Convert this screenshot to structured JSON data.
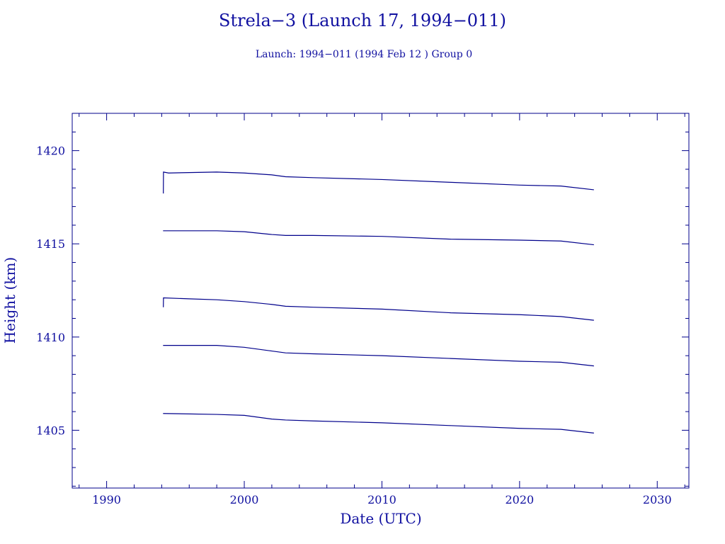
{
  "chart_data": {
    "type": "line",
    "title": "Strela−3 (Launch 17, 1994−011)",
    "subtitle": "Launch: 1994−011  (1994 Feb 12 )  Group 0",
    "xlabel": "Date (UTC)",
    "ylabel": "Height (km)",
    "xlim": [
      1987.5,
      2032.3
    ],
    "ylim": [
      1401.9,
      1422.0
    ],
    "x_ticks": [
      1990,
      2000,
      2010,
      2020,
      2030
    ],
    "x_tick_labels": [
      "1990",
      "2000",
      "2010",
      "2020",
      "2030"
    ],
    "y_ticks": [
      1405,
      1410,
      1415,
      1420
    ],
    "y_tick_labels": [
      "1405",
      "1410",
      "1415",
      "1420"
    ],
    "grid": false,
    "line_color": "#00008b",
    "series": [
      {
        "points": [
          [
            1994.12,
            1417.7
          ],
          [
            1994.13,
            1418.85
          ],
          [
            1994.5,
            1418.8
          ],
          [
            1998,
            1418.85
          ],
          [
            2000,
            1418.8
          ],
          [
            2002,
            1418.7
          ],
          [
            2003,
            1418.6
          ],
          [
            2005,
            1418.55
          ],
          [
            2010,
            1418.45
          ],
          [
            2015,
            1418.3
          ],
          [
            2020,
            1418.15
          ],
          [
            2023,
            1418.1
          ],
          [
            2025.4,
            1417.9
          ]
        ]
      },
      {
        "points": [
          [
            1994.1,
            1415.7
          ],
          [
            1998,
            1415.7
          ],
          [
            2000,
            1415.65
          ],
          [
            2002,
            1415.5
          ],
          [
            2003,
            1415.45
          ],
          [
            2005,
            1415.45
          ],
          [
            2010,
            1415.4
          ],
          [
            2015,
            1415.25
          ],
          [
            2020,
            1415.2
          ],
          [
            2023,
            1415.15
          ],
          [
            2025.4,
            1414.95
          ]
        ]
      },
      {
        "points": [
          [
            1994.12,
            1411.6
          ],
          [
            1994.13,
            1412.1
          ],
          [
            1996,
            1412.05
          ],
          [
            1998,
            1412.0
          ],
          [
            2000,
            1411.9
          ],
          [
            2002,
            1411.75
          ],
          [
            2003,
            1411.65
          ],
          [
            2005,
            1411.6
          ],
          [
            2010,
            1411.5
          ],
          [
            2015,
            1411.3
          ],
          [
            2020,
            1411.2
          ],
          [
            2023,
            1411.1
          ],
          [
            2025.4,
            1410.9
          ]
        ]
      },
      {
        "points": [
          [
            1994.1,
            1409.55
          ],
          [
            1998,
            1409.55
          ],
          [
            2000,
            1409.45
          ],
          [
            2002,
            1409.25
          ],
          [
            2003,
            1409.15
          ],
          [
            2005,
            1409.1
          ],
          [
            2010,
            1409.0
          ],
          [
            2015,
            1408.85
          ],
          [
            2020,
            1408.7
          ],
          [
            2023,
            1408.65
          ],
          [
            2025.4,
            1408.45
          ]
        ]
      },
      {
        "points": [
          [
            1994.1,
            1405.9
          ],
          [
            1998,
            1405.85
          ],
          [
            2000,
            1405.8
          ],
          [
            2002,
            1405.6
          ],
          [
            2003,
            1405.55
          ],
          [
            2005,
            1405.5
          ],
          [
            2010,
            1405.4
          ],
          [
            2015,
            1405.25
          ],
          [
            2020,
            1405.1
          ],
          [
            2023,
            1405.05
          ],
          [
            2025.4,
            1404.85
          ]
        ]
      }
    ]
  }
}
